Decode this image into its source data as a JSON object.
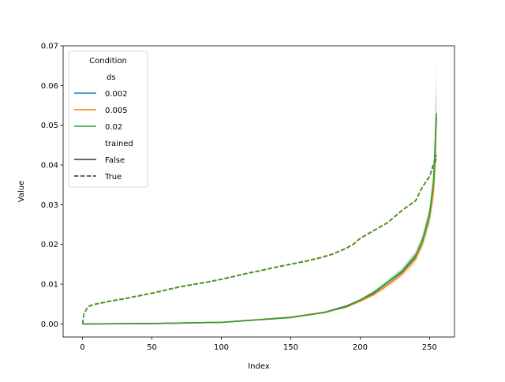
{
  "chart_data": {
    "type": "line",
    "title": "",
    "xlabel": "Index",
    "ylabel": "Value",
    "xlim": [
      -14,
      268
    ],
    "ylim": [
      -0.0033,
      0.07
    ],
    "xticks": [
      0,
      50,
      100,
      150,
      200,
      250
    ],
    "xtick_labels": [
      "0",
      "50",
      "100",
      "150",
      "200",
      "250"
    ],
    "yticks": [
      0.0,
      0.01,
      0.02,
      0.03,
      0.04,
      0.05,
      0.06,
      0.07
    ],
    "ytick_labels": [
      "0.00",
      "0.01",
      "0.02",
      "0.03",
      "0.04",
      "0.05",
      "0.06",
      "0.07"
    ],
    "grid": false,
    "legend": {
      "placement": "top-left",
      "title": "Condition",
      "hue_header": "ds",
      "hue_entries": [
        {
          "label": "0.002",
          "color": "#1f77b4"
        },
        {
          "label": "0.005",
          "color": "#ff7f0e"
        },
        {
          "label": "0.02",
          "color": "#2ca02c"
        }
      ],
      "style_header": "trained",
      "style_entries": [
        {
          "label": "False",
          "dash": "solid"
        },
        {
          "label": "True",
          "dash": "dashed"
        }
      ]
    },
    "series": [
      {
        "ds": "0.002",
        "trained": "False",
        "color": "#1f77b4",
        "dash": "solid",
        "x": [
          0,
          50,
          100,
          150,
          175,
          190,
          200,
          210,
          220,
          230,
          240,
          245,
          250,
          253,
          255
        ],
        "y": [
          0.0,
          0.0001,
          0.0004,
          0.0016,
          0.003,
          0.0045,
          0.006,
          0.0078,
          0.0105,
          0.013,
          0.017,
          0.021,
          0.027,
          0.035,
          0.052
        ],
        "band": [
          0.0,
          0.0,
          0.0,
          0.0,
          0.0001,
          0.0002,
          0.0003,
          0.0004,
          0.0005,
          0.0007,
          0.001,
          0.0013,
          0.0018,
          0.003,
          0.008
        ]
      },
      {
        "ds": "0.005",
        "trained": "False",
        "color": "#ff7f0e",
        "dash": "solid",
        "x": [
          0,
          50,
          100,
          150,
          175,
          190,
          200,
          210,
          220,
          230,
          240,
          245,
          250,
          253,
          255
        ],
        "y": [
          0.0,
          0.0001,
          0.0004,
          0.0017,
          0.003,
          0.0042,
          0.0057,
          0.0074,
          0.0098,
          0.0125,
          0.0165,
          0.0205,
          0.027,
          0.034,
          0.052
        ],
        "band": [
          0.0,
          0.0,
          0.0,
          0.0,
          0.0001,
          0.0002,
          0.0003,
          0.0004,
          0.0006,
          0.0008,
          0.0011,
          0.0015,
          0.002,
          0.0035,
          0.009
        ]
      },
      {
        "ds": "0.02",
        "trained": "False",
        "color": "#2ca02c",
        "dash": "solid",
        "x": [
          0,
          50,
          100,
          150,
          175,
          190,
          200,
          210,
          220,
          230,
          240,
          245,
          250,
          253,
          255
        ],
        "y": [
          0.0,
          0.0001,
          0.0004,
          0.0016,
          0.0029,
          0.0044,
          0.006,
          0.008,
          0.0105,
          0.0132,
          0.0172,
          0.021,
          0.0275,
          0.036,
          0.053
        ],
        "band": [
          0.0,
          0.0,
          0.0,
          0.0,
          0.0001,
          0.0002,
          0.0003,
          0.0005,
          0.0007,
          0.0009,
          0.0012,
          0.0016,
          0.0022,
          0.004,
          0.013
        ]
      },
      {
        "ds": "0.002",
        "trained": "True",
        "color": "#1f77b4",
        "dash": "dashed",
        "x": [
          0,
          1,
          3,
          5,
          10,
          20,
          30,
          40,
          50,
          60,
          70,
          80,
          90,
          100,
          110,
          120,
          130,
          140,
          150,
          160,
          170,
          180,
          190,
          195,
          200,
          210,
          220,
          230,
          240,
          245,
          250,
          253,
          255
        ],
        "y": [
          0.0,
          0.0025,
          0.0038,
          0.0045,
          0.005,
          0.0057,
          0.0063,
          0.007,
          0.0077,
          0.0085,
          0.0093,
          0.0099,
          0.0105,
          0.0112,
          0.012,
          0.0128,
          0.0135,
          0.0143,
          0.015,
          0.0157,
          0.0165,
          0.0175,
          0.019,
          0.02,
          0.0215,
          0.0235,
          0.0255,
          0.0285,
          0.031,
          0.0345,
          0.037,
          0.0405,
          0.0425
        ],
        "band": []
      },
      {
        "ds": "0.005",
        "trained": "True",
        "color": "#ff7f0e",
        "dash": "dashed",
        "x": [
          0,
          1,
          3,
          5,
          10,
          20,
          30,
          40,
          50,
          60,
          70,
          80,
          90,
          100,
          110,
          120,
          130,
          140,
          150,
          160,
          170,
          180,
          190,
          195,
          200,
          210,
          220,
          230,
          240,
          245,
          250,
          253,
          255
        ],
        "y": [
          0.0,
          0.0026,
          0.0039,
          0.0046,
          0.0051,
          0.0058,
          0.0064,
          0.0071,
          0.0078,
          0.0086,
          0.0094,
          0.01,
          0.0106,
          0.0113,
          0.0121,
          0.0129,
          0.0136,
          0.0144,
          0.0151,
          0.0158,
          0.0166,
          0.0176,
          0.0191,
          0.0201,
          0.0216,
          0.0236,
          0.0256,
          0.0286,
          0.0311,
          0.0346,
          0.0372,
          0.0395,
          0.0415
        ],
        "band": []
      },
      {
        "ds": "0.02",
        "trained": "True",
        "color": "#2ca02c",
        "dash": "dashed",
        "x": [
          0,
          1,
          3,
          5,
          10,
          20,
          30,
          40,
          50,
          60,
          70,
          80,
          90,
          100,
          110,
          120,
          130,
          140,
          150,
          160,
          170,
          180,
          190,
          195,
          200,
          210,
          220,
          230,
          240,
          245,
          250,
          253,
          255
        ],
        "y": [
          0.0,
          0.0025,
          0.0038,
          0.0045,
          0.005,
          0.0057,
          0.0063,
          0.007,
          0.0077,
          0.0085,
          0.0093,
          0.0099,
          0.0105,
          0.0112,
          0.012,
          0.0128,
          0.0135,
          0.0143,
          0.015,
          0.0157,
          0.0165,
          0.0175,
          0.019,
          0.02,
          0.0215,
          0.0235,
          0.0255,
          0.0285,
          0.031,
          0.0345,
          0.037,
          0.04,
          0.042
        ],
        "band": []
      }
    ]
  }
}
